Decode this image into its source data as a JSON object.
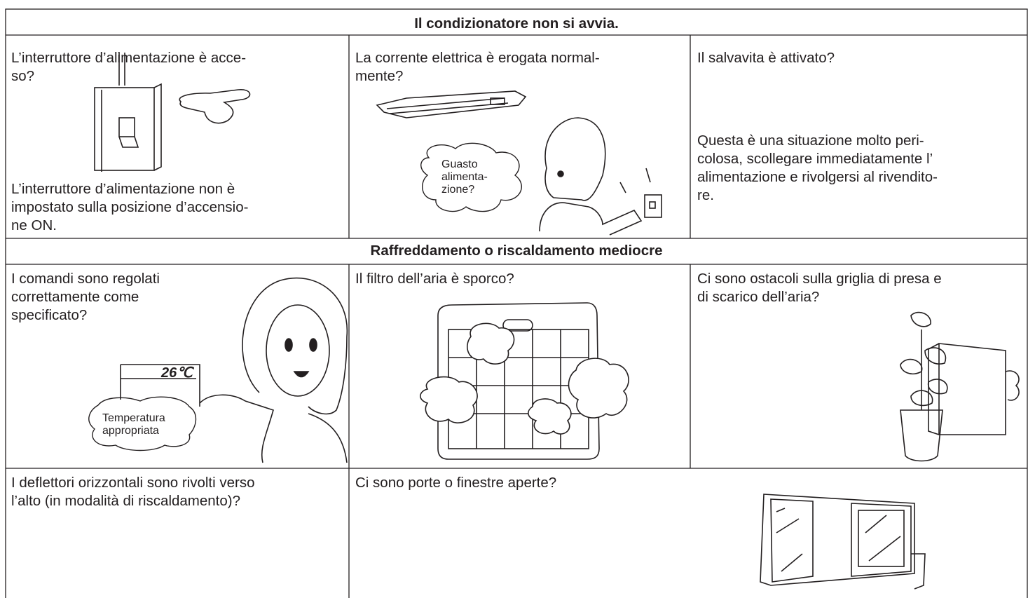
{
  "sections": [
    {
      "title": "Il condizionatore non si avvia.",
      "cells": [
        {
          "question": [
            "L’interruttore d’alimentazione è acce-",
            "so?"
          ],
          "answer": [
            "L’interruttore d’alimentazione non è",
            "impostato sulla posizione d’accensio-",
            "ne ON."
          ]
        },
        {
          "question": [
            "La corrente elettrica è erogata normal-",
            "mente?"
          ],
          "bubble": [
            "Guasto",
            "alimenta-",
            "zione?"
          ]
        },
        {
          "question": [
            "Il salvavita è attivato?"
          ],
          "answer": [
            "Questa è una situazione molto peri-",
            "colosa, scollegare immediatamente l’",
            "alimentazione e rivolgersi al rivendito-",
            "re."
          ]
        }
      ]
    },
    {
      "title": "Raffreddamento o riscaldamento mediocre",
      "cells": [
        {
          "question": [
            "I comandi sono regolati",
            "correttamente come",
            "specificato?"
          ],
          "display": "26℃",
          "bubble": [
            "Temperatura",
            "appropriata"
          ]
        },
        {
          "question": [
            "Il filtro dell’aria è sporco?"
          ]
        },
        {
          "question": [
            "Ci sono ostacoli sulla griglia di presa e",
            "di scarico dell’aria?"
          ]
        },
        {
          "question": [
            "I deflettori orizzontali sono rivolti verso",
            "l’alto (in modalità di riscaldamento)?"
          ]
        },
        {
          "question": [
            "Ci sono porte o finestre aperte?"
          ]
        }
      ]
    }
  ]
}
